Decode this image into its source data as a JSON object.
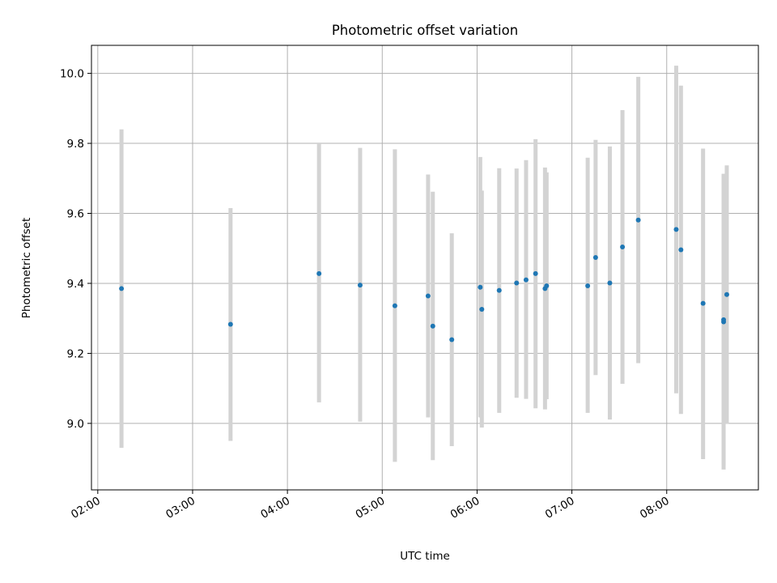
{
  "chart_data": {
    "type": "scatter",
    "title": "Photometric offset variation",
    "xlabel": "UTC time",
    "ylabel": "Photometric offset",
    "x_axis_type": "time",
    "xlim": [
      "01:56",
      "08:58"
    ],
    "ylim": [
      8.81,
      10.08
    ],
    "xticks": [
      "02:00",
      "03:00",
      "04:00",
      "05:00",
      "06:00",
      "07:00",
      "08:00"
    ],
    "yticks": [
      9.0,
      9.2,
      9.4,
      9.6,
      9.8,
      10.0
    ],
    "grid": true,
    "colors": {
      "point": "#1f77b4",
      "errorbar": "#d3d3d3",
      "grid": "#b0b0b0"
    },
    "series": [
      {
        "points": [
          {
            "t": "02:15",
            "y": 9.385,
            "err_low": 8.93,
            "err_high": 9.84
          },
          {
            "t": "03:24",
            "y": 9.283,
            "err_low": 8.95,
            "err_high": 9.615
          },
          {
            "t": "04:20",
            "y": 9.428,
            "err_low": 9.06,
            "err_high": 9.8
          },
          {
            "t": "04:46",
            "y": 9.395,
            "err_low": 9.005,
            "err_high": 9.787
          },
          {
            "t": "05:08",
            "y": 9.336,
            "err_low": 8.89,
            "err_high": 9.783
          },
          {
            "t": "05:29",
            "y": 9.364,
            "err_low": 9.017,
            "err_high": 9.711
          },
          {
            "t": "05:32",
            "y": 9.278,
            "err_low": 8.895,
            "err_high": 9.662
          },
          {
            "t": "05:44",
            "y": 9.239,
            "err_low": 8.935,
            "err_high": 9.543
          },
          {
            "t": "06:02",
            "y": 9.389,
            "err_low": 9.017,
            "err_high": 9.761
          },
          {
            "t": "06:03",
            "y": 9.326,
            "err_low": 8.988,
            "err_high": 9.665
          },
          {
            "t": "06:14",
            "y": 9.38,
            "err_low": 9.03,
            "err_high": 9.729
          },
          {
            "t": "06:25",
            "y": 9.401,
            "err_low": 9.073,
            "err_high": 9.728
          },
          {
            "t": "06:31",
            "y": 9.41,
            "err_low": 9.07,
            "err_high": 9.752
          },
          {
            "t": "06:37",
            "y": 9.428,
            "err_low": 9.043,
            "err_high": 9.812
          },
          {
            "t": "06:43",
            "y": 9.385,
            "err_low": 9.04,
            "err_high": 9.731
          },
          {
            "t": "06:44",
            "y": 9.393,
            "err_low": 9.069,
            "err_high": 9.717
          },
          {
            "t": "07:10",
            "y": 9.393,
            "err_low": 9.03,
            "err_high": 9.759
          },
          {
            "t": "07:15",
            "y": 9.474,
            "err_low": 9.138,
            "err_high": 9.81
          },
          {
            "t": "07:24",
            "y": 9.401,
            "err_low": 9.011,
            "err_high": 9.791
          },
          {
            "t": "07:32",
            "y": 9.504,
            "err_low": 9.113,
            "err_high": 9.895
          },
          {
            "t": "07:42",
            "y": 9.581,
            "err_low": 9.172,
            "err_high": 9.99
          },
          {
            "t": "08:06",
            "y": 9.554,
            "err_low": 9.086,
            "err_high": 10.022
          },
          {
            "t": "08:09",
            "y": 9.496,
            "err_low": 9.027,
            "err_high": 9.965
          },
          {
            "t": "08:23",
            "y": 9.343,
            "err_low": 8.898,
            "err_high": 9.785
          },
          {
            "t": "08:36",
            "y": 9.29,
            "err_low": 8.868,
            "err_high": 9.713
          },
          {
            "t": "08:36",
            "y": 9.296,
            "err_low": 8.88,
            "err_high": 9.712
          },
          {
            "t": "08:38",
            "y": 9.368,
            "err_low": 8.999,
            "err_high": 9.737
          }
        ]
      }
    ]
  }
}
